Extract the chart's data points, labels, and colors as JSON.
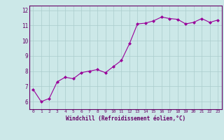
{
  "x": [
    0,
    1,
    2,
    3,
    4,
    5,
    6,
    7,
    8,
    9,
    10,
    11,
    12,
    13,
    14,
    15,
    16,
    17,
    18,
    19,
    20,
    21,
    22,
    23
  ],
  "y": [
    6.8,
    6.0,
    6.2,
    7.3,
    7.6,
    7.5,
    7.9,
    8.0,
    8.1,
    7.9,
    8.3,
    8.7,
    9.8,
    11.1,
    11.15,
    11.3,
    11.55,
    11.45,
    11.4,
    11.1,
    11.2,
    11.45,
    11.2,
    11.35
  ],
  "line_color": "#990099",
  "marker": "D",
  "marker_size": 2,
  "bg_color": "#cce8e8",
  "grid_color": "#aacccc",
  "xlabel": "Windchill (Refroidissement éolien,°C)",
  "xlabel_color": "#660066",
  "tick_color": "#660066",
  "spine_color": "#660066",
  "xlim": [
    -0.5,
    23.5
  ],
  "ylim": [
    5.5,
    12.3
  ],
  "yticks": [
    6,
    7,
    8,
    9,
    10,
    11,
    12
  ],
  "xticks": [
    0,
    1,
    2,
    3,
    4,
    5,
    6,
    7,
    8,
    9,
    10,
    11,
    12,
    13,
    14,
    15,
    16,
    17,
    18,
    19,
    20,
    21,
    22,
    23
  ]
}
